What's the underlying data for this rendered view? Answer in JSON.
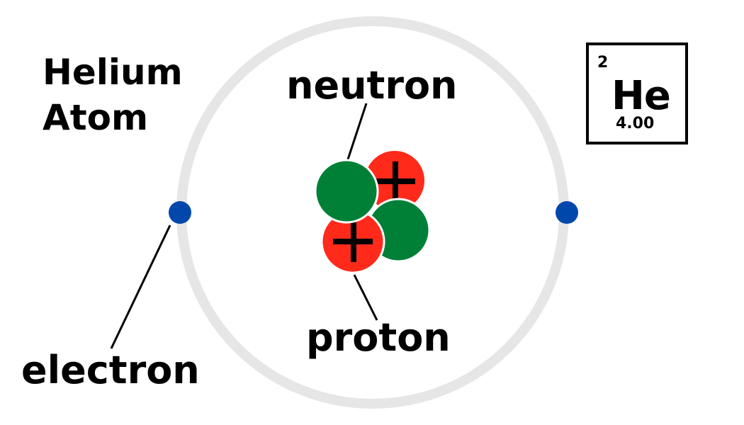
{
  "title": [
    "Helium",
    "Atom"
  ],
  "labels": {
    "neutron": "neutron",
    "proton": "proton",
    "electron": "electron"
  },
  "element_card": {
    "atomic_number": "2",
    "symbol": "He",
    "atomic_mass": "4.00"
  },
  "colors": {
    "orbit": "#e6e6e6",
    "electron": "#0047ab",
    "proton": "#ff2a1a",
    "neutron": "#008037",
    "proton_sign": "#000000"
  },
  "proton_sign": "+"
}
